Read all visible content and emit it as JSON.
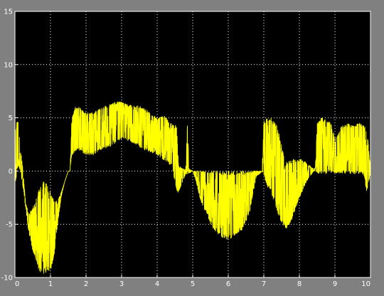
{
  "window": {
    "background": "#808080",
    "plot_background": "#000000"
  },
  "chart_data": {
    "type": "line",
    "title": "",
    "xlabel": "",
    "ylabel": "",
    "xlim": [
      0,
      10
    ],
    "ylim": [
      -10,
      15
    ],
    "xticks": [
      0,
      1,
      2,
      3,
      4,
      5,
      6,
      7,
      8,
      9,
      10
    ],
    "yticks": [
      -10,
      -5,
      0,
      5,
      10,
      15
    ],
    "grid": true,
    "legend": "none",
    "colors": {
      "series": "#ffff00",
      "grid": "#ffffff",
      "axes": "#ffffff"
    },
    "series": [
      {
        "color": "#ffff00",
        "envelope": {
          "x": [
            0.0,
            0.05,
            0.1,
            0.15,
            0.2,
            0.25,
            0.3,
            0.4,
            0.5,
            0.6,
            0.7,
            0.8,
            0.9,
            1.0,
            1.1,
            1.2,
            1.3,
            1.4,
            1.5,
            1.55,
            1.6,
            1.7,
            1.8,
            2.0,
            2.2,
            2.4,
            2.6,
            2.8,
            3.0,
            3.2,
            3.4,
            3.6,
            3.8,
            4.0,
            4.2,
            4.4,
            4.5,
            4.55,
            4.6,
            4.8,
            4.85,
            4.9,
            5.0,
            5.1,
            5.2,
            5.3,
            5.4,
            5.5,
            5.6,
            5.8,
            6.0,
            6.2,
            6.4,
            6.6,
            6.7,
            6.8,
            6.9,
            6.95,
            7.0,
            7.1,
            7.2,
            7.3,
            7.4,
            7.5,
            7.6,
            7.7,
            7.8,
            7.9,
            8.0,
            8.1,
            8.2,
            8.3,
            8.4,
            8.45,
            8.5,
            8.6,
            8.7,
            8.8,
            8.9,
            9.0,
            9.2,
            9.4,
            9.5,
            9.6,
            9.7,
            9.8,
            9.9,
            10.0
          ],
          "upper": [
            4.0,
            4.8,
            4.6,
            2.0,
            1.0,
            -1.0,
            -3.0,
            -4.0,
            -3.5,
            -2.5,
            -1.5,
            -1.0,
            -1.2,
            -2.0,
            -2.8,
            -2.8,
            -2.0,
            -1.0,
            0.0,
            0.0,
            5.0,
            6.0,
            6.0,
            5.5,
            5.5,
            6.0,
            6.2,
            6.5,
            6.5,
            6.2,
            6.2,
            6.0,
            5.5,
            5.0,
            5.2,
            4.5,
            4.2,
            4.5,
            0.5,
            0.1,
            4.4,
            0.2,
            0.0,
            0.0,
            0.0,
            0.0,
            0.0,
            0.0,
            0.0,
            0.0,
            0.0,
            0.0,
            0.0,
            0.0,
            0.0,
            0.0,
            0.0,
            0.0,
            4.8,
            5.0,
            5.0,
            4.8,
            4.0,
            2.5,
            0.8,
            1.0,
            1.2,
            1.0,
            1.2,
            1.0,
            0.8,
            0.5,
            0.2,
            0.3,
            4.5,
            5.0,
            5.0,
            4.8,
            4.5,
            3.0,
            4.3,
            4.5,
            4.3,
            4.4,
            4.5,
            4.3,
            4.0,
            0.2
          ],
          "lower": [
            -2.0,
            0.0,
            0.5,
            0.0,
            -1.0,
            -2.0,
            -3.5,
            -6.0,
            -7.5,
            -8.5,
            -9.5,
            -9.8,
            -9.5,
            -9.5,
            -8.0,
            -5.0,
            -2.5,
            -1.0,
            0.0,
            0.0,
            1.5,
            1.8,
            2.0,
            1.5,
            1.5,
            2.0,
            2.2,
            2.5,
            3.0,
            2.8,
            2.5,
            2.0,
            1.8,
            1.5,
            1.0,
            0.5,
            -1.0,
            -2.0,
            -2.0,
            -0.3,
            -0.3,
            -0.2,
            0.0,
            -1.0,
            -2.5,
            -3.5,
            -4.0,
            -5.0,
            -5.5,
            -6.2,
            -6.5,
            -6.0,
            -5.5,
            -4.0,
            -2.0,
            -0.5,
            -0.2,
            0.0,
            -0.5,
            -1.5,
            -2.0,
            -3.0,
            -4.0,
            -5.0,
            -5.5,
            -5.2,
            -4.5,
            -3.5,
            -2.5,
            -1.8,
            -1.0,
            -0.5,
            0.0,
            0.0,
            -0.2,
            -0.3,
            -0.3,
            -0.2,
            -0.2,
            -0.2,
            -0.2,
            -0.2,
            -0.3,
            -0.3,
            -0.2,
            -0.3,
            -2.0,
            -0.2
          ]
        }
      }
    ]
  }
}
